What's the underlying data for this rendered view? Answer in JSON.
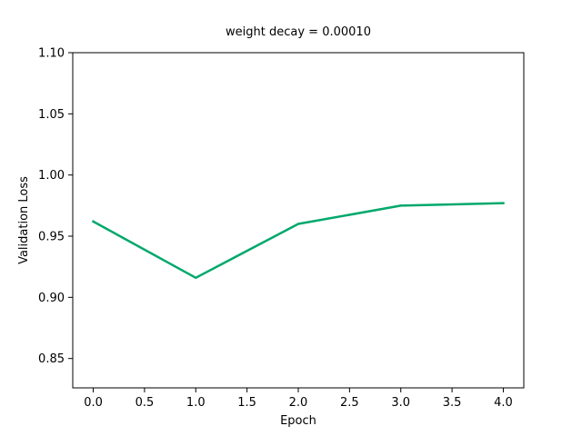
{
  "chart_data": {
    "type": "line",
    "title": "weight decay = 0.00010",
    "xlabel": "Epoch",
    "ylabel": "Validation Loss",
    "xlim": [
      -0.2,
      4.2
    ],
    "ylim": [
      0.826,
      1.1
    ],
    "xticks": [
      0.0,
      0.5,
      1.0,
      1.5,
      2.0,
      2.5,
      3.0,
      3.5,
      4.0
    ],
    "xtick_labels": [
      "0.0",
      "0.5",
      "1.0",
      "1.5",
      "2.0",
      "2.5",
      "3.0",
      "3.5",
      "4.0"
    ],
    "yticks": [
      0.85,
      0.9,
      0.95,
      1.0,
      1.05,
      1.1
    ],
    "ytick_labels": [
      "0.85",
      "0.90",
      "0.95",
      "1.00",
      "1.05",
      "1.10"
    ],
    "grid": false,
    "series": [
      {
        "color": "#00a86b",
        "x": [
          0,
          1,
          2,
          3,
          4
        ],
        "y": [
          0.962,
          0.916,
          0.96,
          0.975,
          0.977
        ]
      }
    ]
  }
}
